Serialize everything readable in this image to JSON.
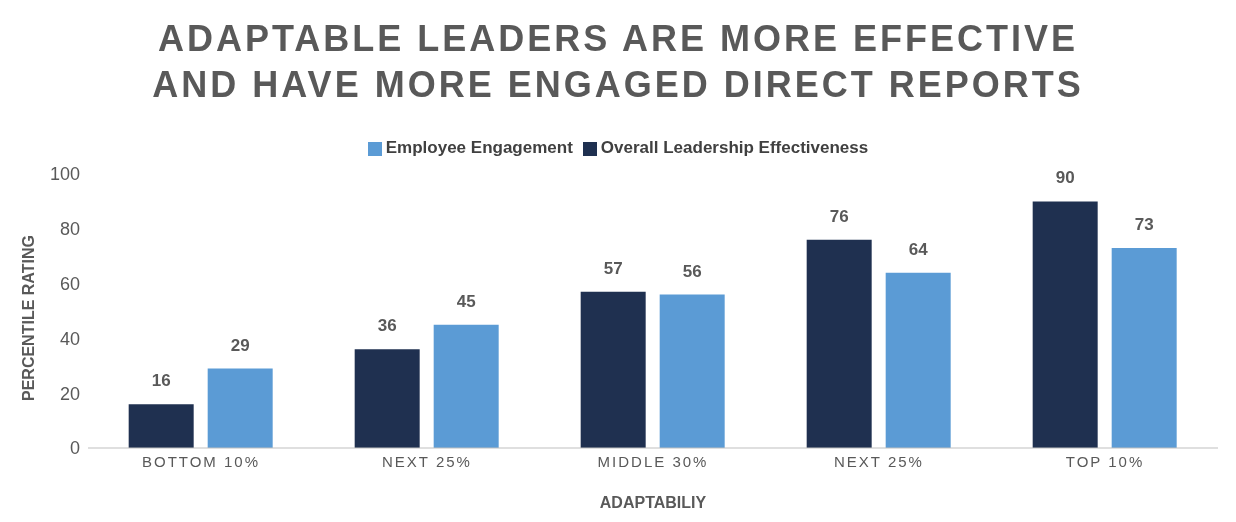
{
  "chart_data": {
    "type": "bar",
    "title": "ADAPTABLE LEADERS ARE MORE EFFECTIVE\nAND HAVE MORE ENGAGED DIRECT REPORTS",
    "xlabel": "ADAPTABILIY",
    "ylabel": "PERCENTILE RATING",
    "categories": [
      "BOTTOM 10%",
      "NEXT 25%",
      "MIDDLE 30%",
      "NEXT 25%",
      "TOP 10%"
    ],
    "series": [
      {
        "name": "Overall Leadership Effectiveness",
        "color": "#1f3050",
        "values": [
          16,
          36,
          57,
          76,
          90
        ]
      },
      {
        "name": "Employee Engagement",
        "color": "#5b9bd5",
        "values": [
          29,
          45,
          56,
          64,
          73
        ]
      }
    ],
    "ylim": [
      0,
      100
    ],
    "yticks": [
      0,
      20,
      40,
      60,
      80,
      100
    ],
    "grid": false,
    "legend": "top",
    "data_labels": true
  }
}
